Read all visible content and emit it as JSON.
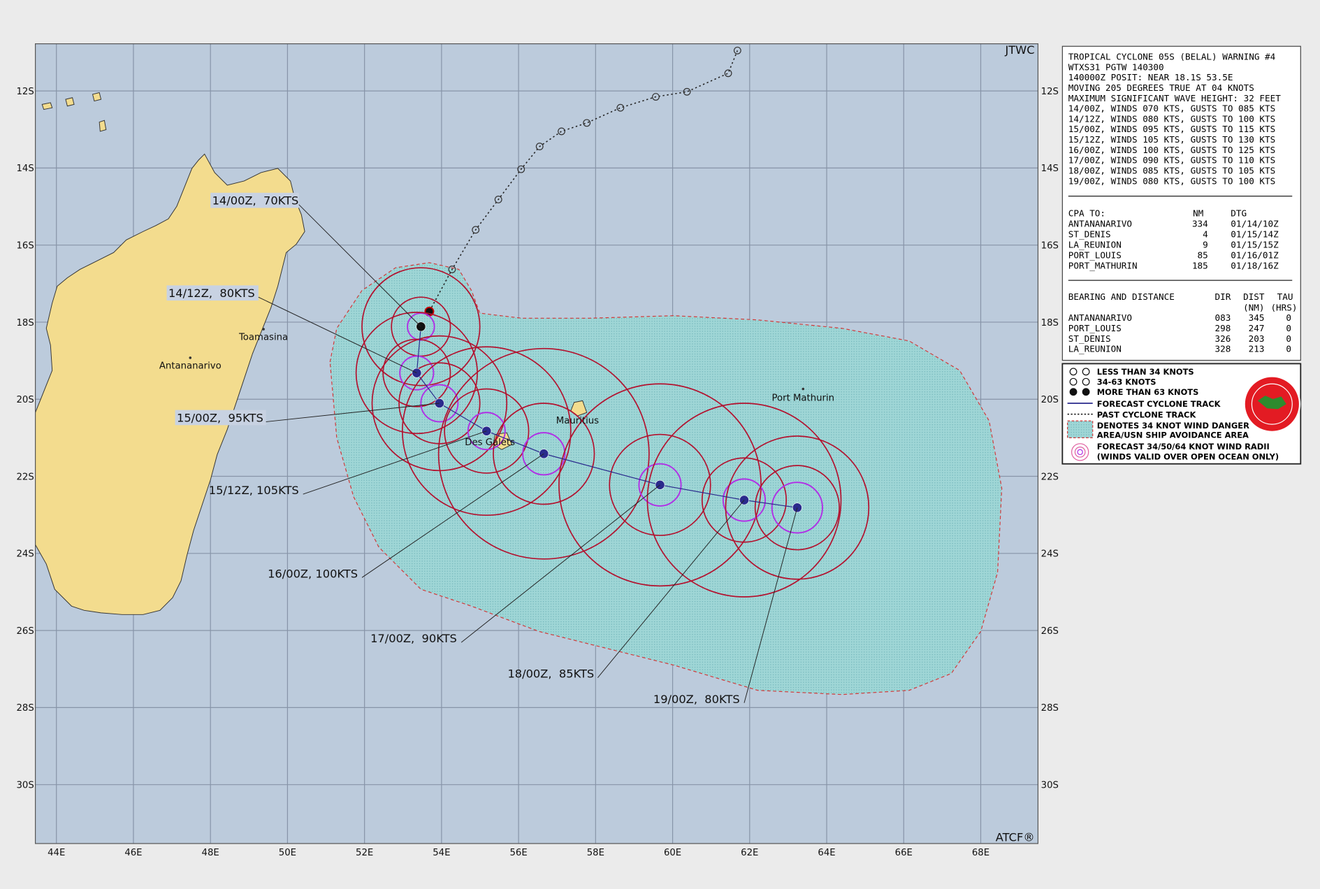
{
  "map": {
    "source": "JTWC",
    "footer": "ATCF®",
    "lon_labels": [
      "44E",
      "46E",
      "48E",
      "50E",
      "52E",
      "54E",
      "56E",
      "58E",
      "60E",
      "62E",
      "64E",
      "66E",
      "68E"
    ],
    "lat_labels": [
      "12S",
      "14S",
      "16S",
      "18S",
      "20S",
      "22S",
      "24S",
      "26S",
      "28S",
      "30S"
    ],
    "places": [
      "Toamasina",
      "Antananarivo",
      "Mauritius",
      "Des Galets",
      "Port Mathurin"
    ],
    "forecast_labels": [
      "14/00Z,  70KTS",
      "14/12Z,  80KTS",
      "15/00Z,  95KTS",
      "15/12Z, 105KTS",
      "16/00Z, 100KTS",
      "17/00Z,  90KTS",
      "18/00Z,  85KTS",
      "19/00Z,  80KTS"
    ]
  },
  "warning": {
    "lines": [
      "TROPICAL CYCLONE 05S (BELAL) WARNING #4",
      "WTXS31 PGTW 140300",
      "140000Z POSIT: NEAR 18.1S 53.5E",
      "MOVING 205 DEGREES TRUE AT 04 KNOTS",
      "MAXIMUM SIGNIFICANT WAVE HEIGHT: 32 FEET",
      "14/00Z, WINDS 070 KTS, GUSTS TO 085 KTS",
      "14/12Z, WINDS 080 KTS, GUSTS TO 100 KTS",
      "15/00Z, WINDS 095 KTS, GUSTS TO 115 KTS",
      "15/12Z, WINDS 105 KTS, GUSTS TO 130 KTS",
      "16/00Z, WINDS 100 KTS, GUSTS TO 125 KTS",
      "17/00Z, WINDS 090 KTS, GUSTS TO 110 KTS",
      "18/00Z, WINDS 085 KTS, GUSTS TO 105 KTS",
      "19/00Z, WINDS 080 KTS, GUSTS TO 100 KTS"
    ]
  },
  "cpa": {
    "header": [
      "CPA TO:",
      "NM",
      "DTG"
    ],
    "rows": [
      [
        "ANTANANARIVO",
        "334",
        "01/14/10Z"
      ],
      [
        "ST_DENIS",
        "4",
        "01/15/14Z"
      ],
      [
        "LA_REUNION",
        "9",
        "01/15/15Z"
      ],
      [
        "PORT_LOUIS",
        "85",
        "01/16/01Z"
      ],
      [
        "PORT_MATHURIN",
        "185",
        "01/18/16Z"
      ]
    ]
  },
  "bearing": {
    "header": [
      "BEARING AND DISTANCE",
      "DIR",
      "DIST",
      "TAU"
    ],
    "subheader": [
      "(NM)",
      "(HRS)"
    ],
    "rows": [
      [
        "ANTANANARIVO",
        "083",
        "345",
        "0"
      ],
      [
        "PORT_LOUIS",
        "298",
        "247",
        "0"
      ],
      [
        "ST_DENIS",
        "326",
        "203",
        "0"
      ],
      [
        "LA_REUNION",
        "328",
        "213",
        "0"
      ]
    ]
  },
  "legend": {
    "items": [
      "LESS THAN 34 KNOTS",
      "34-63 KNOTS",
      "MORE THAN 63 KNOTS",
      "FORECAST CYCLONE TRACK",
      "PAST CYCLONE TRACK",
      "DENOTES 34 KNOT WIND DANGER",
      "AREA/USN SHIP AVOIDANCE AREA",
      "FORECAST 34/50/64 KNOT WIND RADII",
      "(WINDS VALID OVER OPEN OCEAN ONLY)"
    ]
  }
}
